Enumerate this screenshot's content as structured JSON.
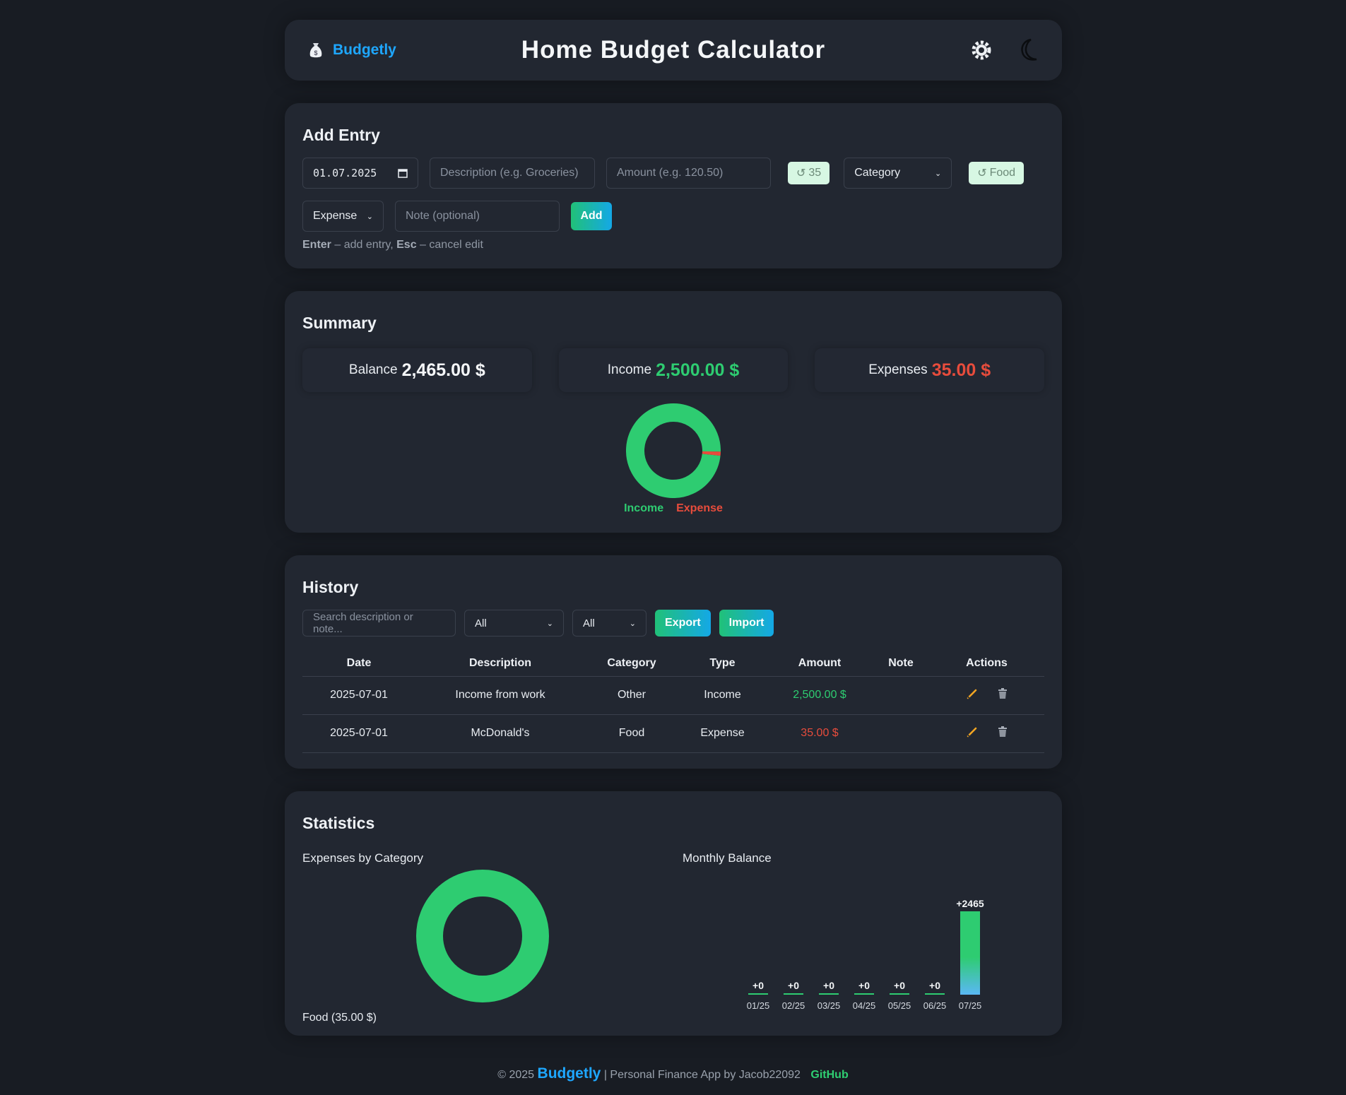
{
  "header": {
    "brand": "Budgetly",
    "title": "Home Budget Calculator",
    "icons": [
      "money-bag-icon",
      "gear-icon",
      "moon-icon"
    ]
  },
  "add_entry": {
    "heading": "Add Entry",
    "date_value": "01.07.2025",
    "description_placeholder": "Description (e.g. Groceries)",
    "amount_placeholder": "Amount (e.g. 120.50)",
    "amount_chip": "35",
    "category_select": "Category",
    "category_chip": "Food",
    "type_select": "Expense",
    "note_placeholder": "Note (optional)",
    "add_label": "Add",
    "hint_key1": "Enter",
    "hint_text1": "– add entry,",
    "hint_key2": "Esc",
    "hint_text2": "– cancel edit"
  },
  "summary": {
    "heading": "Summary",
    "balance_label": "Balance",
    "balance_value": "2,465.00 $",
    "income_label": "Income",
    "income_value": "2,500.00 $",
    "expenses_label": "Expenses",
    "expenses_value": "35.00 $",
    "donut": {
      "income": 2500,
      "expense": 35
    },
    "legend_income": "Income",
    "legend_expense": "Expense"
  },
  "history": {
    "heading": "History",
    "search_placeholder": "Search description or note...",
    "filter1": "All",
    "filter2": "All",
    "export_label": "Export",
    "import_label": "Import",
    "columns": [
      "Date",
      "Description",
      "Category",
      "Type",
      "Amount",
      "Note",
      "Actions"
    ],
    "rows": [
      {
        "date": "2025-07-01",
        "description": "Income from work",
        "category": "Other",
        "type": "Income",
        "amount": "2,500.00 $",
        "note": ""
      },
      {
        "date": "2025-07-01",
        "description": "McDonald's",
        "category": "Food",
        "type": "Expense",
        "amount": "35.00 $",
        "note": ""
      }
    ]
  },
  "statistics": {
    "heading": "Statistics",
    "expenses_by_category_title": "Expenses by Category",
    "category_label": "Food (35.00 $)",
    "monthly_balance_title": "Monthly Balance"
  },
  "chart_data": [
    {
      "type": "pie",
      "title": "Expenses by Category",
      "categories": [
        "Food"
      ],
      "values": [
        35.0
      ]
    },
    {
      "type": "bar",
      "title": "Monthly Balance",
      "categories": [
        "01/25",
        "02/25",
        "03/25",
        "04/25",
        "05/25",
        "06/25",
        "07/25"
      ],
      "values": [
        0,
        0,
        0,
        0,
        0,
        0,
        2465
      ],
      "value_labels": [
        "+0",
        "+0",
        "+0",
        "+0",
        "+0",
        "+0",
        "+2465"
      ]
    }
  ],
  "colors": {
    "income": "#2ecc71",
    "expense": "#e74c3c",
    "accent_blue": "#1ea7ff",
    "background": "#181c23",
    "card": "#222731"
  },
  "footer": {
    "copyright": "© 2025",
    "brand": "Budgetly",
    "text": "| Personal Finance App by Jacob22092",
    "github": "GitHub"
  }
}
